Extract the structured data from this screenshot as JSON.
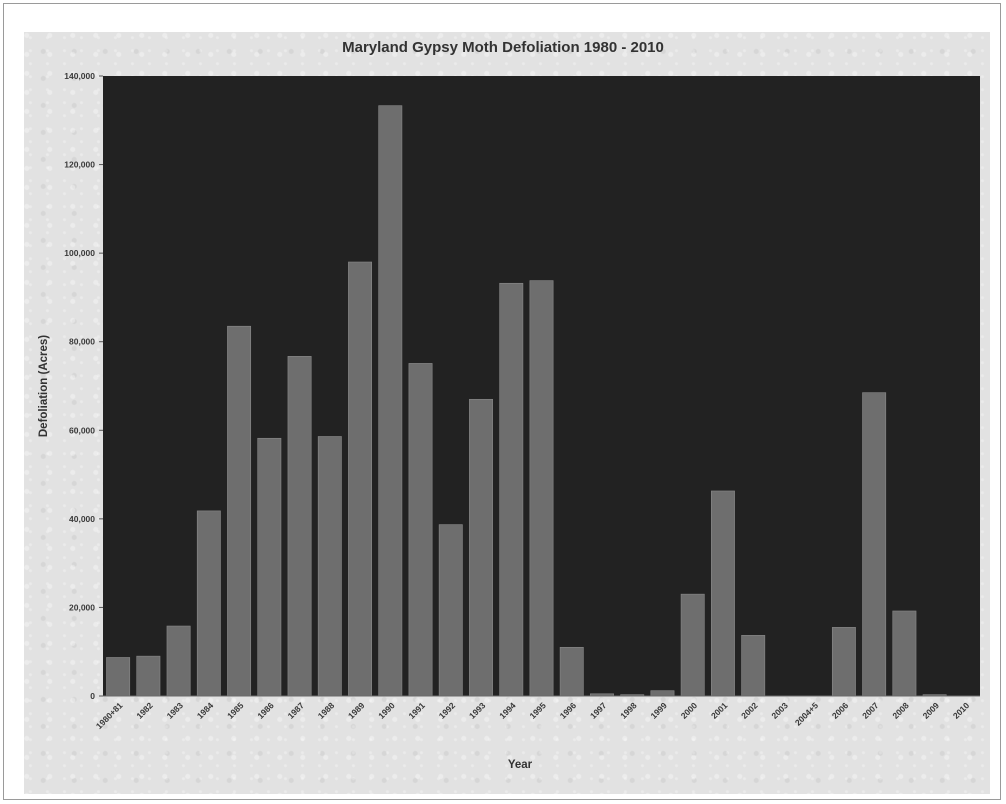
{
  "chart_data": {
    "type": "bar",
    "title": "Maryland Gypsy Moth Defoliation 1980 - 2010",
    "xlabel": "Year",
    "ylabel": "Defoliation (Acres)",
    "ylim": [
      0,
      140000
    ],
    "yticks": [
      0,
      20000,
      40000,
      60000,
      80000,
      100000,
      120000,
      140000
    ],
    "ytick_labels": [
      "0",
      "20,000",
      "40,000",
      "60,000",
      "80,000",
      "100,000",
      "120,000",
      "140,000"
    ],
    "categories": [
      "1980+81",
      "1982",
      "1983",
      "1984",
      "1985",
      "1986",
      "1987",
      "1988",
      "1989",
      "1990",
      "1991",
      "1992",
      "1993",
      "1994",
      "1995",
      "1996",
      "1997",
      "1998",
      "1999",
      "2000",
      "2001",
      "2002",
      "2003",
      "2004+5",
      "2006",
      "2007",
      "2008",
      "2009",
      "2010"
    ],
    "values": [
      8700,
      9000,
      15800,
      41800,
      83500,
      58200,
      76700,
      58600,
      98000,
      133300,
      75100,
      38700,
      67000,
      93200,
      93800,
      11000,
      500,
      300,
      1200,
      23000,
      46300,
      13700,
      0,
      0,
      15500,
      68500,
      19200,
      300,
      0
    ],
    "grid": false,
    "legend": "none",
    "plot_background": "#222222",
    "bar_color": "#6e6e6e",
    "bar_edge_color": "#8a8a8a"
  }
}
